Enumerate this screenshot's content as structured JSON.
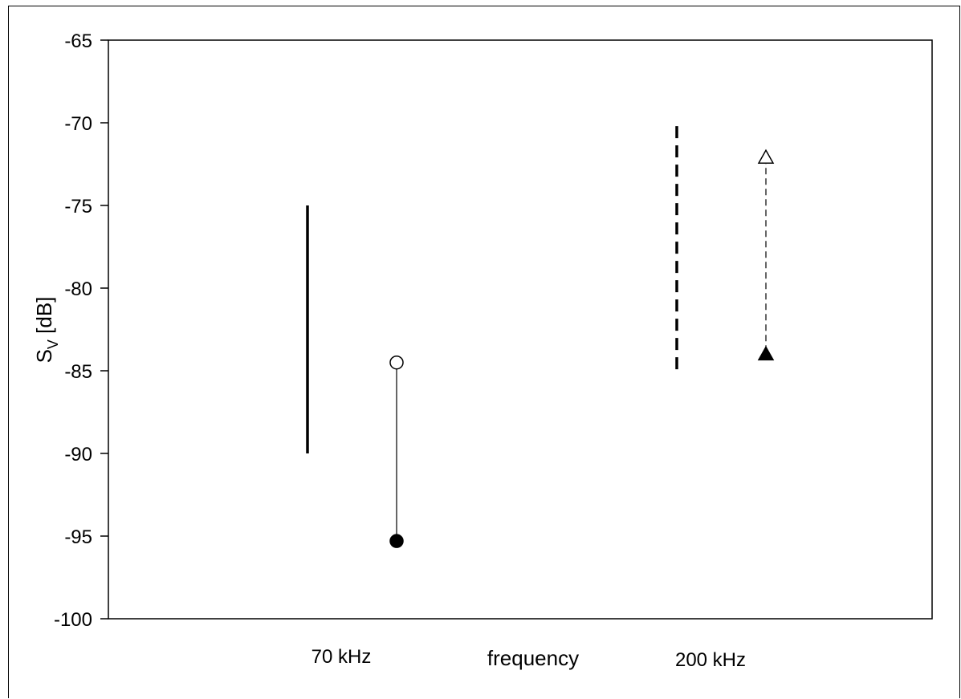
{
  "chart_data": {
    "type": "range",
    "title": "",
    "xlabel": "frequency",
    "ylabel_main": "S",
    "ylabel_sub": "V",
    "ylabel_unit": " [dB]",
    "ylim": [
      -100,
      -65
    ],
    "yticks": [
      -65,
      -70,
      -75,
      -80,
      -85,
      -90,
      -95,
      -100
    ],
    "categories": [
      "70 kHz",
      "200 kHz"
    ],
    "grid": false,
    "series": [
      {
        "category": "70 kHz",
        "position": "left",
        "style": "solid-thick",
        "y_low": -90,
        "y_high": -75,
        "marker_low": "none",
        "marker_high": "none"
      },
      {
        "category": "70 kHz",
        "position": "right",
        "style": "solid-thin",
        "y_low": -95.3,
        "y_high": -84.5,
        "marker_low": "filled-circle",
        "marker_high": "open-circle"
      },
      {
        "category": "200 kHz",
        "position": "left",
        "style": "dashed-thick",
        "y_low": -85,
        "y_high": -70.2,
        "marker_low": "none",
        "marker_high": "none"
      },
      {
        "category": "200 kHz",
        "position": "right",
        "style": "dashed-thin",
        "y_low": -84,
        "y_high": -72.1,
        "marker_low": "filled-triangle",
        "marker_high": "open-triangle"
      }
    ]
  }
}
